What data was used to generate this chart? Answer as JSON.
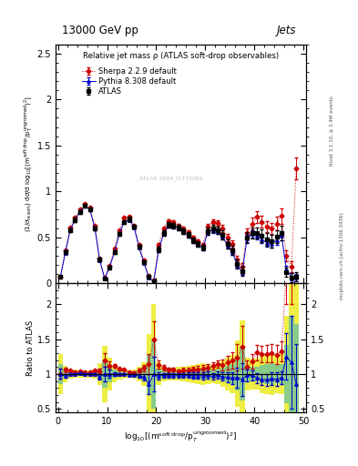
{
  "title_top": "13000 GeV pp",
  "title_right": "Jets",
  "plot_title": "Relative jet mass ρ (ATLAS soft-drop observables)",
  "ylabel_main": "$(1/\\sigma_\\mathrm{resum})$ d$\\sigma$/d log$_{10}$[(m$^\\mathrm{soft\\ drop}$/p$_\\mathrm{T}^\\mathrm{ungroomed})^2$]",
  "ylabel_ratio": "Ratio to ATLAS",
  "xlabel": "log$_{10}$[(m$^\\mathrm{soft\\ drop}$/p$_T^\\mathrm{ungroomed}$)$^2$]",
  "ylim_main": [
    0.0,
    2.6
  ],
  "ylim_ratio": [
    0.45,
    2.3
  ],
  "xlim": [
    -0.5,
    50.5
  ],
  "yticks_main": [
    0.0,
    0.5,
    1.0,
    1.5,
    2.0,
    2.5
  ],
  "yticks_ratio": [
    0.5,
    1.0,
    1.5,
    2.0
  ],
  "xticks": [
    0,
    10,
    20,
    30,
    40,
    50
  ],
  "atlas_x": [
    0.5,
    1.5,
    2.5,
    3.5,
    4.5,
    5.5,
    6.5,
    7.5,
    8.5,
    9.5,
    10.5,
    11.5,
    12.5,
    13.5,
    14.5,
    15.5,
    16.5,
    17.5,
    18.5,
    19.5,
    20.5,
    21.5,
    22.5,
    23.5,
    24.5,
    25.5,
    26.5,
    27.5,
    28.5,
    29.5,
    30.5,
    31.5,
    32.5,
    33.5,
    34.5,
    35.5,
    36.5,
    37.5,
    38.5,
    39.5,
    40.5,
    41.5,
    42.5,
    43.5,
    44.5,
    45.5,
    46.5,
    47.5,
    48.5
  ],
  "atlas_y": [
    0.07,
    0.34,
    0.58,
    0.69,
    0.77,
    0.84,
    0.8,
    0.6,
    0.26,
    0.05,
    0.17,
    0.34,
    0.54,
    0.67,
    0.7,
    0.62,
    0.4,
    0.23,
    0.07,
    0.02,
    0.37,
    0.55,
    0.64,
    0.63,
    0.61,
    0.57,
    0.53,
    0.47,
    0.43,
    0.39,
    0.57,
    0.6,
    0.58,
    0.53,
    0.43,
    0.36,
    0.21,
    0.13,
    0.5,
    0.55,
    0.55,
    0.52,
    0.48,
    0.46,
    0.51,
    0.55,
    0.12,
    0.06,
    0.07
  ],
  "atlas_yerr": [
    0.01,
    0.02,
    0.02,
    0.02,
    0.02,
    0.02,
    0.02,
    0.02,
    0.02,
    0.01,
    0.02,
    0.02,
    0.02,
    0.02,
    0.02,
    0.02,
    0.02,
    0.02,
    0.02,
    0.01,
    0.03,
    0.03,
    0.03,
    0.03,
    0.03,
    0.03,
    0.03,
    0.03,
    0.03,
    0.03,
    0.04,
    0.04,
    0.04,
    0.05,
    0.05,
    0.05,
    0.05,
    0.05,
    0.06,
    0.06,
    0.06,
    0.07,
    0.07,
    0.07,
    0.07,
    0.08,
    0.05,
    0.05,
    0.05
  ],
  "pythia_x": [
    0.5,
    1.5,
    2.5,
    3.5,
    4.5,
    5.5,
    6.5,
    7.5,
    8.5,
    9.5,
    10.5,
    11.5,
    12.5,
    13.5,
    14.5,
    15.5,
    16.5,
    17.5,
    18.5,
    19.5,
    20.5,
    21.5,
    22.5,
    23.5,
    24.5,
    25.5,
    26.5,
    27.5,
    28.5,
    29.5,
    30.5,
    31.5,
    32.5,
    33.5,
    34.5,
    35.5,
    36.5,
    37.5,
    38.5,
    39.5,
    40.5,
    41.5,
    42.5,
    43.5,
    44.5,
    45.5,
    46.5,
    47.5,
    48.5
  ],
  "pythia_y": [
    0.07,
    0.33,
    0.58,
    0.69,
    0.78,
    0.84,
    0.8,
    0.6,
    0.25,
    0.05,
    0.17,
    0.34,
    0.54,
    0.67,
    0.69,
    0.61,
    0.39,
    0.22,
    0.06,
    0.02,
    0.36,
    0.54,
    0.63,
    0.62,
    0.6,
    0.56,
    0.52,
    0.46,
    0.42,
    0.38,
    0.56,
    0.58,
    0.57,
    0.51,
    0.41,
    0.34,
    0.2,
    0.12,
    0.49,
    0.54,
    0.52,
    0.48,
    0.44,
    0.43,
    0.47,
    0.52,
    0.15,
    0.07,
    0.06
  ],
  "pythia_yerr": [
    0.005,
    0.01,
    0.01,
    0.01,
    0.01,
    0.01,
    0.01,
    0.01,
    0.01,
    0.005,
    0.01,
    0.01,
    0.01,
    0.01,
    0.01,
    0.01,
    0.01,
    0.01,
    0.01,
    0.005,
    0.02,
    0.02,
    0.02,
    0.02,
    0.02,
    0.02,
    0.02,
    0.02,
    0.02,
    0.02,
    0.03,
    0.03,
    0.03,
    0.03,
    0.03,
    0.03,
    0.03,
    0.03,
    0.04,
    0.04,
    0.04,
    0.04,
    0.04,
    0.04,
    0.05,
    0.05,
    0.04,
    0.04,
    0.04
  ],
  "sherpa_x": [
    0.5,
    1.5,
    2.5,
    3.5,
    4.5,
    5.5,
    6.5,
    7.5,
    8.5,
    9.5,
    10.5,
    11.5,
    12.5,
    13.5,
    14.5,
    15.5,
    16.5,
    17.5,
    18.5,
    19.5,
    20.5,
    21.5,
    22.5,
    23.5,
    24.5,
    25.5,
    26.5,
    27.5,
    28.5,
    29.5,
    30.5,
    31.5,
    32.5,
    33.5,
    34.5,
    35.5,
    36.5,
    37.5,
    38.5,
    39.5,
    40.5,
    41.5,
    42.5,
    43.5,
    44.5,
    45.5,
    46.5,
    47.5,
    48.5
  ],
  "sherpa_y": [
    0.07,
    0.36,
    0.61,
    0.71,
    0.8,
    0.86,
    0.82,
    0.63,
    0.27,
    0.06,
    0.19,
    0.38,
    0.58,
    0.71,
    0.72,
    0.63,
    0.42,
    0.25,
    0.08,
    0.03,
    0.42,
    0.6,
    0.68,
    0.67,
    0.63,
    0.6,
    0.56,
    0.5,
    0.46,
    0.42,
    0.62,
    0.67,
    0.66,
    0.6,
    0.5,
    0.43,
    0.26,
    0.18,
    0.55,
    0.65,
    0.72,
    0.67,
    0.62,
    0.6,
    0.65,
    0.73,
    0.3,
    0.18,
    1.25
  ],
  "sherpa_yerr": [
    0.005,
    0.01,
    0.01,
    0.01,
    0.01,
    0.01,
    0.01,
    0.01,
    0.01,
    0.005,
    0.01,
    0.01,
    0.01,
    0.01,
    0.01,
    0.01,
    0.01,
    0.01,
    0.01,
    0.005,
    0.02,
    0.02,
    0.02,
    0.02,
    0.02,
    0.02,
    0.02,
    0.02,
    0.02,
    0.02,
    0.03,
    0.03,
    0.03,
    0.04,
    0.04,
    0.04,
    0.04,
    0.04,
    0.05,
    0.06,
    0.06,
    0.06,
    0.06,
    0.06,
    0.07,
    0.08,
    0.06,
    0.06,
    0.12
  ],
  "atlas_color": "black",
  "pythia_color": "#0000cc",
  "sherpa_color": "#cc0000",
  "band_green": "#88cc88",
  "band_yellow": "#eeee44",
  "right_label_top": "Rivet 3.1.10, ≥ 3.4M events",
  "right_label_bot": "mcplots.cern.ch [arXiv:1306.3436]"
}
